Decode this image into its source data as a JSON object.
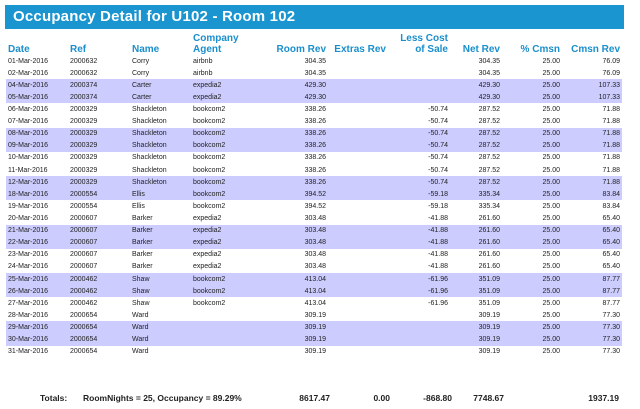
{
  "title": "Occupancy Detail for U102 - Room 102",
  "columns": [
    "Date",
    "Ref",
    "Name",
    "Company Agent",
    "Room Rev",
    "Extras Rev",
    "Less Cost of Sale",
    "Net Rev",
    "% Cmsn",
    "Cmsn Rev"
  ],
  "rows": [
    {
      "date": "01-Mar-2016",
      "ref": "2000632",
      "name": "Corry",
      "agent": "airbnb",
      "room_rev": "304.35",
      "extras_rev": "",
      "less_cost": "",
      "net_rev": "304.35",
      "pct_cmsn": "25.00",
      "cmsn_rev": "76.09"
    },
    {
      "date": "02-Mar-2016",
      "ref": "2000632",
      "name": "Corry",
      "agent": "airbnb",
      "room_rev": "304.35",
      "extras_rev": "",
      "less_cost": "",
      "net_rev": "304.35",
      "pct_cmsn": "25.00",
      "cmsn_rev": "76.09"
    },
    {
      "date": "04-Mar-2016",
      "ref": "2000374",
      "name": "Carter",
      "agent": "expedia2",
      "room_rev": "429.30",
      "extras_rev": "",
      "less_cost": "",
      "net_rev": "429.30",
      "pct_cmsn": "25.00",
      "cmsn_rev": "107.33"
    },
    {
      "date": "05-Mar-2016",
      "ref": "2000374",
      "name": "Carter",
      "agent": "expedia2",
      "room_rev": "429.30",
      "extras_rev": "",
      "less_cost": "",
      "net_rev": "429.30",
      "pct_cmsn": "25.00",
      "cmsn_rev": "107.33"
    },
    {
      "date": "06-Mar-2016",
      "ref": "2000329",
      "name": "Shackleton",
      "agent": "bookcom2",
      "room_rev": "338.26",
      "extras_rev": "",
      "less_cost": "-50.74",
      "net_rev": "287.52",
      "pct_cmsn": "25.00",
      "cmsn_rev": "71.88"
    },
    {
      "date": "07-Mar-2016",
      "ref": "2000329",
      "name": "Shackleton",
      "agent": "bookcom2",
      "room_rev": "338.26",
      "extras_rev": "",
      "less_cost": "-50.74",
      "net_rev": "287.52",
      "pct_cmsn": "25.00",
      "cmsn_rev": "71.88"
    },
    {
      "date": "08-Mar-2016",
      "ref": "2000329",
      "name": "Shackleton",
      "agent": "bookcom2",
      "room_rev": "338.26",
      "extras_rev": "",
      "less_cost": "-50.74",
      "net_rev": "287.52",
      "pct_cmsn": "25.00",
      "cmsn_rev": "71.88"
    },
    {
      "date": "09-Mar-2016",
      "ref": "2000329",
      "name": "Shackleton",
      "agent": "bookcom2",
      "room_rev": "338.26",
      "extras_rev": "",
      "less_cost": "-50.74",
      "net_rev": "287.52",
      "pct_cmsn": "25.00",
      "cmsn_rev": "71.88"
    },
    {
      "date": "10-Mar-2016",
      "ref": "2000329",
      "name": "Shackleton",
      "agent": "bookcom2",
      "room_rev": "338.26",
      "extras_rev": "",
      "less_cost": "-50.74",
      "net_rev": "287.52",
      "pct_cmsn": "25.00",
      "cmsn_rev": "71.88"
    },
    {
      "date": "11-Mar-2016",
      "ref": "2000329",
      "name": "Shackleton",
      "agent": "bookcom2",
      "room_rev": "338.26",
      "extras_rev": "",
      "less_cost": "-50.74",
      "net_rev": "287.52",
      "pct_cmsn": "25.00",
      "cmsn_rev": "71.88"
    },
    {
      "date": "12-Mar-2016",
      "ref": "2000329",
      "name": "Shackleton",
      "agent": "bookcom2",
      "room_rev": "338.26",
      "extras_rev": "",
      "less_cost": "-50.74",
      "net_rev": "287.52",
      "pct_cmsn": "25.00",
      "cmsn_rev": "71.88"
    },
    {
      "date": "18-Mar-2016",
      "ref": "2000554",
      "name": "Ellis",
      "agent": "bookcom2",
      "room_rev": "394.52",
      "extras_rev": "",
      "less_cost": "-59.18",
      "net_rev": "335.34",
      "pct_cmsn": "25.00",
      "cmsn_rev": "83.84"
    },
    {
      "date": "19-Mar-2016",
      "ref": "2000554",
      "name": "Ellis",
      "agent": "bookcom2",
      "room_rev": "394.52",
      "extras_rev": "",
      "less_cost": "-59.18",
      "net_rev": "335.34",
      "pct_cmsn": "25.00",
      "cmsn_rev": "83.84"
    },
    {
      "date": "20-Mar-2016",
      "ref": "2000607",
      "name": "Barker",
      "agent": "expedia2",
      "room_rev": "303.48",
      "extras_rev": "",
      "less_cost": "-41.88",
      "net_rev": "261.60",
      "pct_cmsn": "25.00",
      "cmsn_rev": "65.40"
    },
    {
      "date": "21-Mar-2016",
      "ref": "2000607",
      "name": "Barker",
      "agent": "expedia2",
      "room_rev": "303.48",
      "extras_rev": "",
      "less_cost": "-41.88",
      "net_rev": "261.60",
      "pct_cmsn": "25.00",
      "cmsn_rev": "65.40"
    },
    {
      "date": "22-Mar-2016",
      "ref": "2000607",
      "name": "Barker",
      "agent": "expedia2",
      "room_rev": "303.48",
      "extras_rev": "",
      "less_cost": "-41.88",
      "net_rev": "261.60",
      "pct_cmsn": "25.00",
      "cmsn_rev": "65.40"
    },
    {
      "date": "23-Mar-2016",
      "ref": "2000607",
      "name": "Barker",
      "agent": "expedia2",
      "room_rev": "303.48",
      "extras_rev": "",
      "less_cost": "-41.88",
      "net_rev": "261.60",
      "pct_cmsn": "25.00",
      "cmsn_rev": "65.40"
    },
    {
      "date": "24-Mar-2016",
      "ref": "2000607",
      "name": "Barker",
      "agent": "expedia2",
      "room_rev": "303.48",
      "extras_rev": "",
      "less_cost": "-41.88",
      "net_rev": "261.60",
      "pct_cmsn": "25.00",
      "cmsn_rev": "65.40"
    },
    {
      "date": "25-Mar-2016",
      "ref": "2000462",
      "name": "Shaw",
      "agent": "bookcom2",
      "room_rev": "413.04",
      "extras_rev": "",
      "less_cost": "-61.96",
      "net_rev": "351.09",
      "pct_cmsn": "25.00",
      "cmsn_rev": "87.77"
    },
    {
      "date": "26-Mar-2016",
      "ref": "2000462",
      "name": "Shaw",
      "agent": "bookcom2",
      "room_rev": "413.04",
      "extras_rev": "",
      "less_cost": "-61.96",
      "net_rev": "351.09",
      "pct_cmsn": "25.00",
      "cmsn_rev": "87.77"
    },
    {
      "date": "27-Mar-2016",
      "ref": "2000462",
      "name": "Shaw",
      "agent": "bookcom2",
      "room_rev": "413.04",
      "extras_rev": "",
      "less_cost": "-61.96",
      "net_rev": "351.09",
      "pct_cmsn": "25.00",
      "cmsn_rev": "87.77"
    },
    {
      "date": "28-Mar-2016",
      "ref": "2000654",
      "name": "Ward",
      "agent": "",
      "room_rev": "309.19",
      "extras_rev": "",
      "less_cost": "",
      "net_rev": "309.19",
      "pct_cmsn": "25.00",
      "cmsn_rev": "77.30"
    },
    {
      "date": "29-Mar-2016",
      "ref": "2000654",
      "name": "Ward",
      "agent": "",
      "room_rev": "309.19",
      "extras_rev": "",
      "less_cost": "",
      "net_rev": "309.19",
      "pct_cmsn": "25.00",
      "cmsn_rev": "77.30"
    },
    {
      "date": "30-Mar-2016",
      "ref": "2000654",
      "name": "Ward",
      "agent": "",
      "room_rev": "309.19",
      "extras_rev": "",
      "less_cost": "",
      "net_rev": "309.19",
      "pct_cmsn": "25.00",
      "cmsn_rev": "77.30"
    },
    {
      "date": "31-Mar-2016",
      "ref": "2000654",
      "name": "Ward",
      "agent": "",
      "room_rev": "309.19",
      "extras_rev": "",
      "less_cost": "",
      "net_rev": "309.19",
      "pct_cmsn": "25.00",
      "cmsn_rev": "77.30"
    }
  ],
  "totals": {
    "label": "Totals:",
    "summary": "RoomNights = 25, Occupancy = 89.29%",
    "room_rev": "8617.47",
    "extras_rev": "0.00",
    "less_cost": "-868.80",
    "net_rev": "7748.67",
    "cmsn_rev": "1937.19"
  },
  "colors": {
    "title_bg": "#1a95cf",
    "header_text": "#1a8fcc",
    "row_shade": "#ccccff"
  }
}
